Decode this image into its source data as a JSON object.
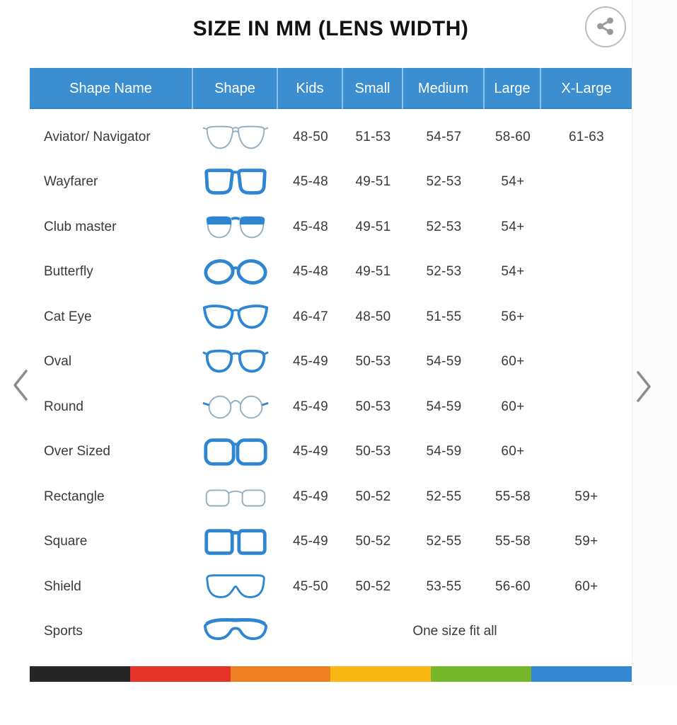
{
  "title": "SIZE IN MM (LENS WIDTH)",
  "carousel": {
    "prev_icon": "chevron-left-icon",
    "next_icon": "chevron-right-icon"
  },
  "share": {
    "icon": "share-icon"
  },
  "table": {
    "headers": [
      "Shape Name",
      "Shape",
      "Kids",
      "Small",
      "Medium",
      "Large",
      "X-Large"
    ],
    "rows": [
      {
        "name": "Aviator/ Navigator",
        "icon": "aviator-glasses-icon",
        "sizes": [
          "48-50",
          "51-53",
          "54-57",
          "58-60",
          "61-63"
        ]
      },
      {
        "name": "Wayfarer",
        "icon": "wayfarer-glasses-icon",
        "sizes": [
          "45-48",
          "49-51",
          "52-53",
          "54+",
          ""
        ]
      },
      {
        "name": "Club master",
        "icon": "clubmaster-glasses-icon",
        "sizes": [
          "45-48",
          "49-51",
          "52-53",
          "54+",
          ""
        ]
      },
      {
        "name": "Butterfly",
        "icon": "butterfly-glasses-icon",
        "sizes": [
          "45-48",
          "49-51",
          "52-53",
          "54+",
          ""
        ]
      },
      {
        "name": "Cat Eye",
        "icon": "cateye-glasses-icon",
        "sizes": [
          "46-47",
          "48-50",
          "51-55",
          "56+",
          ""
        ]
      },
      {
        "name": "Oval",
        "icon": "oval-glasses-icon",
        "sizes": [
          "45-49",
          "50-53",
          "54-59",
          "60+",
          ""
        ]
      },
      {
        "name": "Round",
        "icon": "round-glasses-icon",
        "sizes": [
          "45-49",
          "50-53",
          "54-59",
          "60+",
          ""
        ]
      },
      {
        "name": "Over Sized",
        "icon": "oversized-glasses-icon",
        "sizes": [
          "45-49",
          "50-53",
          "54-59",
          "60+",
          ""
        ]
      },
      {
        "name": "Rectangle",
        "icon": "rectangle-glasses-icon",
        "sizes": [
          "45-49",
          "50-52",
          "52-55",
          "55-58",
          "59+"
        ]
      },
      {
        "name": "Square",
        "icon": "square-glasses-icon",
        "sizes": [
          "45-49",
          "50-52",
          "52-55",
          "55-58",
          "59+"
        ]
      },
      {
        "name": "Shield",
        "icon": "shield-glasses-icon",
        "sizes": [
          "45-50",
          "50-52",
          "53-55",
          "56-60",
          "60+"
        ]
      },
      {
        "name": "Sports",
        "icon": "sports-glasses-icon",
        "note": "One size fit all"
      }
    ]
  },
  "footer_stripe_colors": [
    "#262626",
    "#e63329",
    "#ee7f22",
    "#f8b713",
    "#76b82a",
    "#3389d3"
  ],
  "colors": {
    "header_bg": "#3b8fd1",
    "header_text": "#ffffff",
    "body_text": "#3a3a3a",
    "icon_blue": "#2e86d2",
    "icon_thin_gray": "#94aec2",
    "chevron_gray": "#8c8c8c",
    "share_gray": "#9a9a9a"
  },
  "chart_data": {
    "type": "table",
    "title": "SIZE IN MM (LENS WIDTH)",
    "columns": [
      "Shape Name",
      "Shape",
      "Kids",
      "Small",
      "Medium",
      "Large",
      "X-Large"
    ],
    "rows": [
      [
        "Aviator/ Navigator",
        "aviator",
        "48-50",
        "51-53",
        "54-57",
        "58-60",
        "61-63"
      ],
      [
        "Wayfarer",
        "wayfarer",
        "45-48",
        "49-51",
        "52-53",
        "54+",
        ""
      ],
      [
        "Club master",
        "clubmaster",
        "45-48",
        "49-51",
        "52-53",
        "54+",
        ""
      ],
      [
        "Butterfly",
        "butterfly",
        "45-48",
        "49-51",
        "52-53",
        "54+",
        ""
      ],
      [
        "Cat Eye",
        "cateye",
        "46-47",
        "48-50",
        "51-55",
        "56+",
        ""
      ],
      [
        "Oval",
        "oval",
        "45-49",
        "50-53",
        "54-59",
        "60+",
        ""
      ],
      [
        "Round",
        "round",
        "45-49",
        "50-53",
        "54-59",
        "60+",
        ""
      ],
      [
        "Over Sized",
        "oversized",
        "45-49",
        "50-53",
        "54-59",
        "60+",
        ""
      ],
      [
        "Rectangle",
        "rectangle",
        "45-49",
        "50-52",
        "52-55",
        "55-58",
        "59+"
      ],
      [
        "Square",
        "square",
        "45-49",
        "50-52",
        "52-55",
        "55-58",
        "59+"
      ],
      [
        "Shield",
        "shield",
        "45-50",
        "50-52",
        "53-55",
        "56-60",
        "60+"
      ],
      [
        "Sports",
        "sports",
        "One size fit all",
        "",
        "",
        "",
        ""
      ]
    ]
  }
}
